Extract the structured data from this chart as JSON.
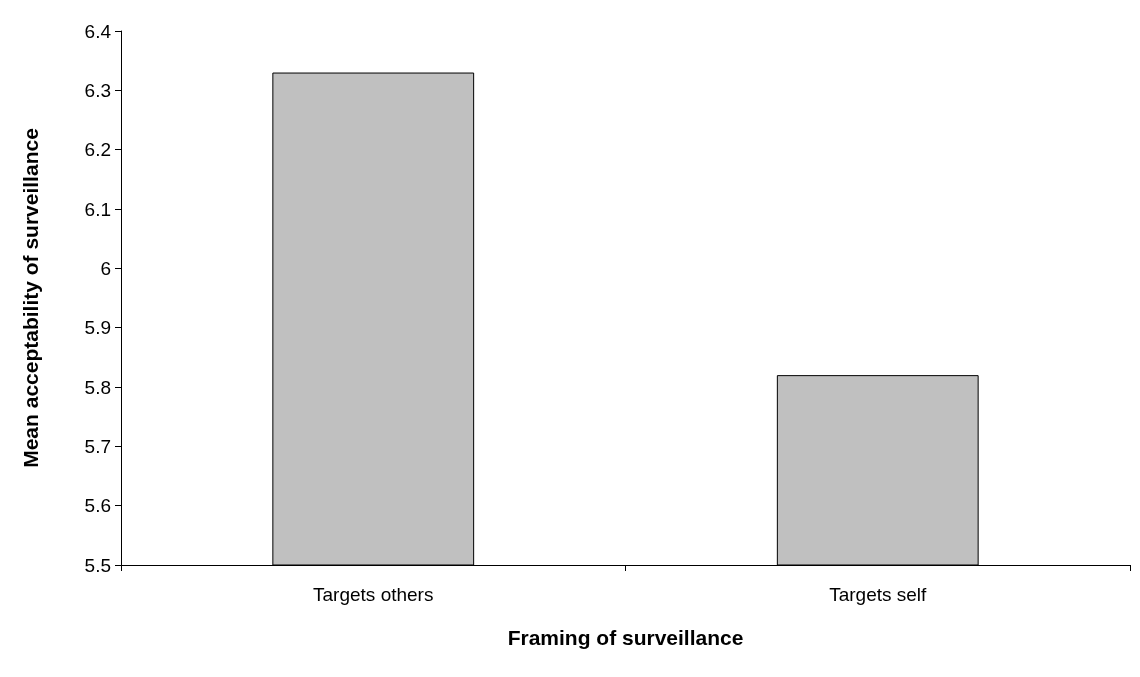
{
  "chart_data": {
    "type": "bar",
    "xlabel": "Framing of surveillance",
    "ylabel": "Mean acceptability of surveillance",
    "categories": [
      "Targets others",
      "Targets self"
    ],
    "values": [
      6.33,
      5.82
    ],
    "color": "#c0c0c0",
    "ylim": [
      5.5,
      6.4
    ],
    "yticks": [
      5.5,
      5.6,
      5.7,
      5.8,
      5.9,
      6,
      6.1,
      6.2,
      6.3,
      6.4
    ],
    "grid": false
  }
}
